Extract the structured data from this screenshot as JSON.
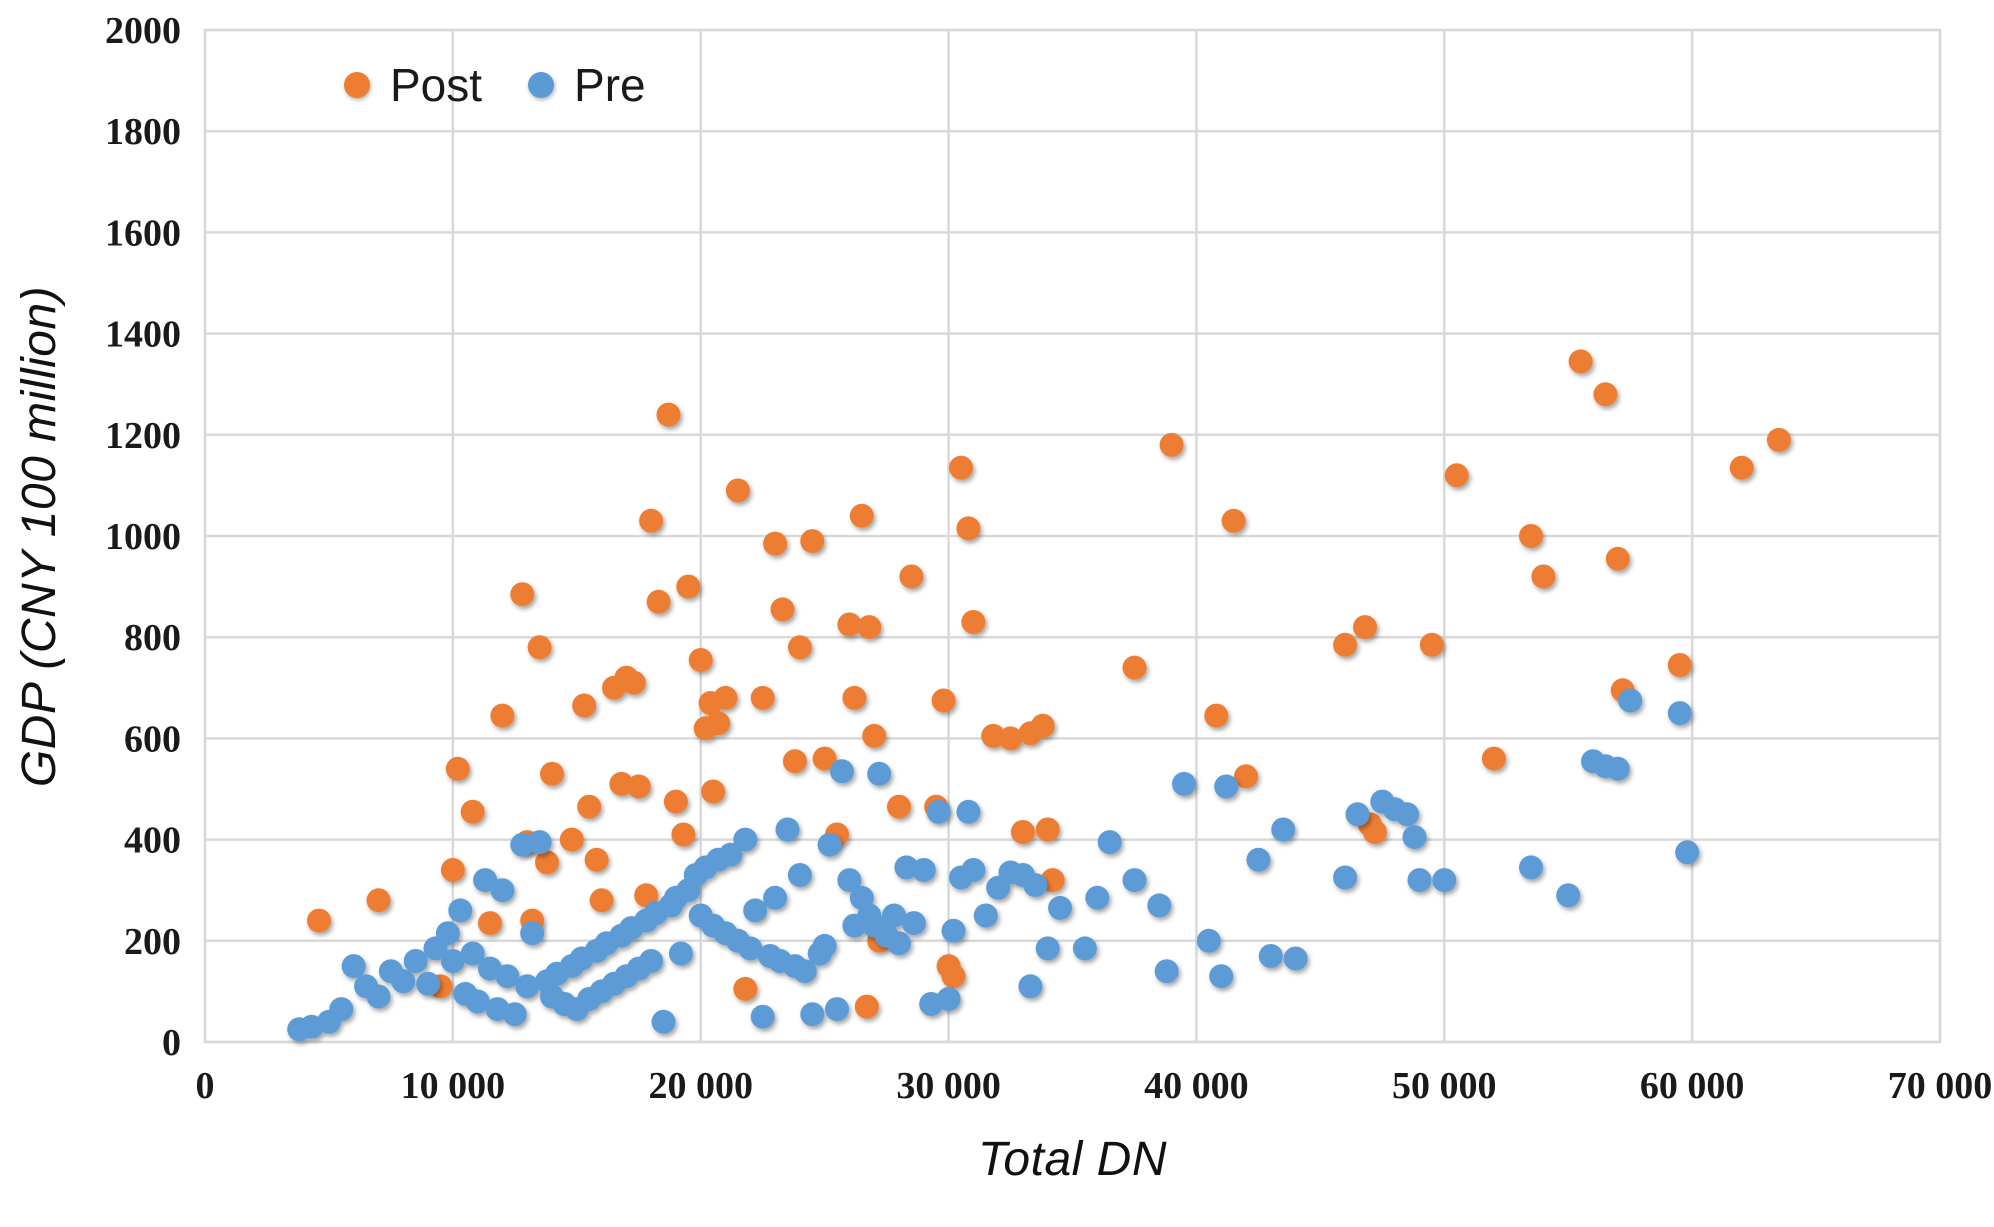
{
  "chart_data": {
    "type": "scatter",
    "title": "",
    "xlabel": "Total DN",
    "ylabel": "GDP (CNY 100 million)",
    "xlim": [
      0,
      70000
    ],
    "ylim": [
      0,
      2000
    ],
    "grid": true,
    "gridline_color": "#d9d9d9",
    "legend_position": "top-left-inside",
    "x_ticks": [
      0,
      10000,
      20000,
      30000,
      40000,
      50000,
      60000,
      70000
    ],
    "x_tick_labels": [
      "0",
      "10 000",
      "20 000",
      "30 000",
      "40 000",
      "50 000",
      "60 000",
      "70 000"
    ],
    "y_ticks": [
      0,
      200,
      400,
      600,
      800,
      1000,
      1200,
      1400,
      1600,
      1800,
      2000
    ],
    "y_tick_labels": [
      "0",
      "200",
      "400",
      "600",
      "800",
      "1000",
      "1200",
      "1400",
      "1600",
      "1800",
      "2000"
    ],
    "series": [
      {
        "name": "Post",
        "color": "#ED7D31",
        "points": [
          [
            4600,
            240
          ],
          [
            7000,
            280
          ],
          [
            9500,
            110
          ],
          [
            10000,
            340
          ],
          [
            10200,
            540
          ],
          [
            10800,
            455
          ],
          [
            11500,
            235
          ],
          [
            12000,
            645
          ],
          [
            12800,
            885
          ],
          [
            13000,
            395
          ],
          [
            13200,
            240
          ],
          [
            13500,
            780
          ],
          [
            13800,
            355
          ],
          [
            14000,
            530
          ],
          [
            14800,
            400
          ],
          [
            15300,
            665
          ],
          [
            15500,
            465
          ],
          [
            15800,
            360
          ],
          [
            16000,
            280
          ],
          [
            16500,
            700
          ],
          [
            16800,
            510
          ],
          [
            17000,
            720
          ],
          [
            17300,
            710
          ],
          [
            17500,
            505
          ],
          [
            17800,
            290
          ],
          [
            18000,
            1030
          ],
          [
            18300,
            870
          ],
          [
            18700,
            1240
          ],
          [
            19000,
            475
          ],
          [
            19300,
            410
          ],
          [
            19500,
            900
          ],
          [
            20000,
            755
          ],
          [
            20200,
            620
          ],
          [
            20400,
            670
          ],
          [
            20500,
            495
          ],
          [
            20700,
            630
          ],
          [
            21000,
            680
          ],
          [
            21500,
            1090
          ],
          [
            21800,
            105
          ],
          [
            22500,
            680
          ],
          [
            23000,
            985
          ],
          [
            23300,
            855
          ],
          [
            23800,
            555
          ],
          [
            24000,
            780
          ],
          [
            24500,
            990
          ],
          [
            25000,
            560
          ],
          [
            25500,
            410
          ],
          [
            26000,
            825
          ],
          [
            26200,
            680
          ],
          [
            26500,
            1040
          ],
          [
            26700,
            70
          ],
          [
            26800,
            820
          ],
          [
            27000,
            605
          ],
          [
            27200,
            200
          ],
          [
            28000,
            465
          ],
          [
            28500,
            920
          ],
          [
            29500,
            465
          ],
          [
            29800,
            675
          ],
          [
            30000,
            150
          ],
          [
            30200,
            130
          ],
          [
            30500,
            1135
          ],
          [
            30800,
            1015
          ],
          [
            31000,
            830
          ],
          [
            31800,
            605
          ],
          [
            32500,
            600
          ],
          [
            33000,
            415
          ],
          [
            33300,
            610
          ],
          [
            33800,
            625
          ],
          [
            34000,
            420
          ],
          [
            34200,
            320
          ],
          [
            37500,
            740
          ],
          [
            39000,
            1180
          ],
          [
            40800,
            645
          ],
          [
            41500,
            1030
          ],
          [
            42000,
            525
          ],
          [
            46000,
            785
          ],
          [
            46800,
            820
          ],
          [
            47000,
            430
          ],
          [
            47200,
            415
          ],
          [
            49500,
            785
          ],
          [
            50500,
            1120
          ],
          [
            52000,
            560
          ],
          [
            53500,
            1000
          ],
          [
            54000,
            920
          ],
          [
            55500,
            1345
          ],
          [
            56500,
            1280
          ],
          [
            57000,
            955
          ],
          [
            57200,
            695
          ],
          [
            59500,
            745
          ],
          [
            62000,
            1135
          ],
          [
            63500,
            1190
          ]
        ]
      },
      {
        "name": "Pre",
        "color": "#5B9BD5",
        "points": [
          [
            3800,
            25
          ],
          [
            4300,
            30
          ],
          [
            5000,
            40
          ],
          [
            5500,
            65
          ],
          [
            6000,
            150
          ],
          [
            6500,
            110
          ],
          [
            7000,
            90
          ],
          [
            7500,
            140
          ],
          [
            8000,
            120
          ],
          [
            8500,
            160
          ],
          [
            9000,
            115
          ],
          [
            9300,
            185
          ],
          [
            9800,
            215
          ],
          [
            10000,
            160
          ],
          [
            10300,
            260
          ],
          [
            10500,
            95
          ],
          [
            10800,
            175
          ],
          [
            11000,
            80
          ],
          [
            11300,
            320
          ],
          [
            11500,
            145
          ],
          [
            11800,
            65
          ],
          [
            12000,
            300
          ],
          [
            12200,
            130
          ],
          [
            12500,
            55
          ],
          [
            12800,
            390
          ],
          [
            13000,
            110
          ],
          [
            13200,
            215
          ],
          [
            13500,
            395
          ],
          [
            13800,
            120
          ],
          [
            14000,
            90
          ],
          [
            14200,
            135
          ],
          [
            14500,
            75
          ],
          [
            14800,
            150
          ],
          [
            15000,
            65
          ],
          [
            15200,
            165
          ],
          [
            15500,
            85
          ],
          [
            15800,
            180
          ],
          [
            16000,
            100
          ],
          [
            16200,
            195
          ],
          [
            16500,
            115
          ],
          [
            16800,
            210
          ],
          [
            17000,
            130
          ],
          [
            17200,
            225
          ],
          [
            17500,
            145
          ],
          [
            17800,
            240
          ],
          [
            18000,
            160
          ],
          [
            18200,
            255
          ],
          [
            18500,
            40
          ],
          [
            18800,
            270
          ],
          [
            19000,
            285
          ],
          [
            19200,
            175
          ],
          [
            19500,
            300
          ],
          [
            19800,
            330
          ],
          [
            20000,
            250
          ],
          [
            20200,
            345
          ],
          [
            20500,
            230
          ],
          [
            20700,
            360
          ],
          [
            21000,
            215
          ],
          [
            21200,
            370
          ],
          [
            21500,
            200
          ],
          [
            21800,
            400
          ],
          [
            22000,
            185
          ],
          [
            22200,
            260
          ],
          [
            22500,
            50
          ],
          [
            22800,
            170
          ],
          [
            23000,
            285
          ],
          [
            23200,
            160
          ],
          [
            23500,
            420
          ],
          [
            23800,
            150
          ],
          [
            24000,
            330
          ],
          [
            24200,
            140
          ],
          [
            24500,
            55
          ],
          [
            24800,
            175
          ],
          [
            25000,
            190
          ],
          [
            25200,
            390
          ],
          [
            25500,
            65
          ],
          [
            25700,
            535
          ],
          [
            26000,
            320
          ],
          [
            26200,
            230
          ],
          [
            26500,
            285
          ],
          [
            26800,
            250
          ],
          [
            27000,
            230
          ],
          [
            27200,
            530
          ],
          [
            27500,
            210
          ],
          [
            27800,
            250
          ],
          [
            28000,
            195
          ],
          [
            28300,
            345
          ],
          [
            28600,
            235
          ],
          [
            29000,
            340
          ],
          [
            29300,
            75
          ],
          [
            29600,
            455
          ],
          [
            30000,
            85
          ],
          [
            30200,
            220
          ],
          [
            30500,
            325
          ],
          [
            30800,
            455
          ],
          [
            31000,
            340
          ],
          [
            31500,
            250
          ],
          [
            32000,
            305
          ],
          [
            32500,
            335
          ],
          [
            33000,
            330
          ],
          [
            33300,
            110
          ],
          [
            33500,
            310
          ],
          [
            34000,
            185
          ],
          [
            34500,
            265
          ],
          [
            35500,
            185
          ],
          [
            36000,
            285
          ],
          [
            36500,
            395
          ],
          [
            37500,
            320
          ],
          [
            38500,
            270
          ],
          [
            38800,
            140
          ],
          [
            39500,
            510
          ],
          [
            40500,
            200
          ],
          [
            41000,
            130
          ],
          [
            41200,
            505
          ],
          [
            42500,
            360
          ],
          [
            43000,
            170
          ],
          [
            43500,
            420
          ],
          [
            44000,
            165
          ],
          [
            46000,
            325
          ],
          [
            46500,
            450
          ],
          [
            47500,
            475
          ],
          [
            48000,
            460
          ],
          [
            48500,
            450
          ],
          [
            48800,
            405
          ],
          [
            49000,
            320
          ],
          [
            50000,
            320
          ],
          [
            53500,
            345
          ],
          [
            55000,
            290
          ],
          [
            56000,
            555
          ],
          [
            56500,
            545
          ],
          [
            57000,
            540
          ],
          [
            57500,
            675
          ],
          [
            59500,
            650
          ],
          [
            59800,
            375
          ]
        ]
      }
    ]
  }
}
